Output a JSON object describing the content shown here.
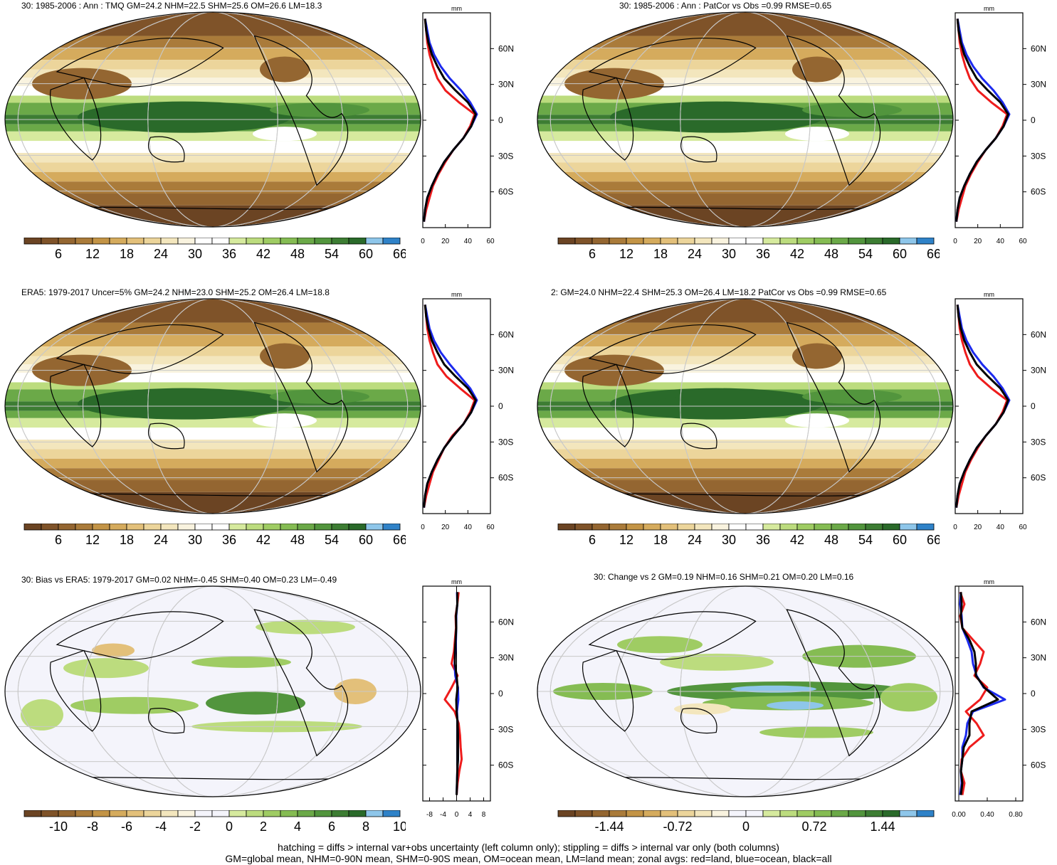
{
  "palettes": {
    "tmq": [
      "#6b4423",
      "#7f5329",
      "#946631",
      "#aa7b3a",
      "#c39446",
      "#d5ab5d",
      "#e3c07a",
      "#ecd59b",
      "#f3e6bd",
      "#f9f3df",
      "#ffffff",
      "#ffffff",
      "#d6ea9e",
      "#bcdc7e",
      "#9fcc63",
      "#85bc53",
      "#6ba948",
      "#52953d",
      "#3d7d33",
      "#2a6a2a",
      "#8ec6ea",
      "#2f82c8"
    ],
    "div": [
      "#6b4423",
      "#7f5329",
      "#946631",
      "#aa7b3a",
      "#c39446",
      "#d5ab5d",
      "#e3c07a",
      "#ecd59b",
      "#f3e6bd",
      "#f9f3df",
      "#f4f4fb",
      "#f4f4fb",
      "#d6ea9e",
      "#bcdc7e",
      "#9fcc63",
      "#85bc53",
      "#6ba948",
      "#52953d",
      "#3d7d33",
      "#2a6a2a",
      "#8ec6ea",
      "#2f82c8"
    ],
    "zonal_colors": {
      "land": "#ee1c1c",
      "ocean": "#1c2aee",
      "all": "#000000"
    }
  },
  "panels": [
    {
      "id": "p1",
      "title": "30: 1985-2006 : Ann : TMQ GM=24.2 NHM=22.5 SHM=25.6 OM=26.6 LM=18.3",
      "map_field": "tmq",
      "colorbar": {
        "palette": "tmq",
        "labels": [
          "6",
          "12",
          "18",
          "24",
          "30",
          "36",
          "42",
          "48",
          "54",
          "60",
          "66"
        ]
      },
      "zonal": {
        "unit": "mm",
        "xlim": [
          0,
          60
        ],
        "xticks": [
          "0",
          "20",
          "40",
          "60"
        ],
        "ylim": [
          -90,
          90
        ],
        "lat_labels": [
          {
            "lat": 60,
            "label": "60N"
          },
          {
            "lat": 30,
            "label": "30N"
          },
          {
            "lat": 0,
            "label": "0"
          },
          {
            "lat": -30,
            "label": "30S"
          },
          {
            "lat": -60,
            "label": "60S"
          }
        ],
        "lats": [
          -85,
          -75,
          -65,
          -55,
          -45,
          -35,
          -25,
          -15,
          -5,
          5,
          15,
          25,
          35,
          45,
          55,
          65,
          75,
          85
        ],
        "land": [
          1,
          3,
          6,
          9,
          14,
          20,
          27,
          36,
          42,
          46,
          32,
          20,
          13,
          9,
          6,
          4,
          3,
          2
        ],
        "ocean": [
          1,
          2,
          4,
          8,
          13,
          19,
          27,
          36,
          43,
          48,
          42,
          34,
          24,
          16,
          10,
          6,
          4,
          2
        ],
        "all": [
          1,
          2,
          4,
          8,
          13,
          19,
          27,
          36,
          43,
          47,
          40,
          29,
          19,
          13,
          8,
          5,
          3,
          2
        ]
      }
    },
    {
      "id": "p2",
      "title": "30: 1985-2006 : Ann : PatCor vs Obs =0.99 RMSE=0.65",
      "map_field": "tmq",
      "colorbar": {
        "palette": "tmq",
        "labels": [
          "6",
          "12",
          "18",
          "24",
          "30",
          "36",
          "42",
          "48",
          "54",
          "60",
          "66"
        ]
      },
      "zonal": {
        "unit": "mm",
        "xlim": [
          0,
          60
        ],
        "xticks": [
          "0",
          "20",
          "40",
          "60"
        ],
        "ylim": [
          -90,
          90
        ],
        "lat_labels": [
          {
            "lat": 60,
            "label": "60N"
          },
          {
            "lat": 30,
            "label": "30N"
          },
          {
            "lat": 0,
            "label": "0"
          },
          {
            "lat": -30,
            "label": "30S"
          },
          {
            "lat": -60,
            "label": "60S"
          }
        ],
        "lats": [
          -85,
          -75,
          -65,
          -55,
          -45,
          -35,
          -25,
          -15,
          -5,
          5,
          15,
          25,
          35,
          45,
          55,
          65,
          75,
          85
        ],
        "land": [
          1,
          3,
          6,
          9,
          14,
          20,
          27,
          36,
          42,
          46,
          32,
          20,
          13,
          9,
          6,
          4,
          3,
          2
        ],
        "ocean": [
          1,
          2,
          4,
          8,
          13,
          19,
          27,
          36,
          43,
          48,
          42,
          34,
          24,
          16,
          10,
          6,
          4,
          2
        ],
        "all": [
          1,
          2,
          4,
          8,
          13,
          19,
          27,
          36,
          43,
          47,
          40,
          29,
          19,
          13,
          8,
          5,
          3,
          2
        ]
      }
    },
    {
      "id": "p3",
      "title": "ERA5: 1979-2017 Uncer=5% GM=24.2 NHM=23.0 SHM=25.2 OM=26.4 LM=18.8",
      "map_field": "tmq",
      "colorbar": {
        "palette": "tmq",
        "labels": [
          "6",
          "12",
          "18",
          "24",
          "30",
          "36",
          "42",
          "48",
          "54",
          "60",
          "66"
        ]
      },
      "zonal": {
        "unit": "mm",
        "xlim": [
          0,
          60
        ],
        "xticks": [
          "0",
          "20",
          "40",
          "60"
        ],
        "ylim": [
          -90,
          90
        ],
        "lat_labels": [
          {
            "lat": 60,
            "label": "60N"
          },
          {
            "lat": 30,
            "label": "30N"
          },
          {
            "lat": 0,
            "label": "0"
          },
          {
            "lat": -30,
            "label": "30S"
          },
          {
            "lat": -60,
            "label": "60S"
          }
        ],
        "lats": [
          -85,
          -75,
          -65,
          -55,
          -45,
          -35,
          -25,
          -15,
          -5,
          5,
          15,
          25,
          35,
          45,
          55,
          65,
          75,
          85
        ],
        "land": [
          1,
          3,
          6,
          9,
          14,
          19,
          26,
          36,
          42,
          46,
          33,
          21,
          13,
          9,
          6,
          4,
          3,
          2
        ],
        "ocean": [
          1,
          2,
          4,
          8,
          13,
          19,
          27,
          36,
          43,
          48,
          42,
          33,
          24,
          16,
          10,
          6,
          4,
          2
        ],
        "all": [
          1,
          2,
          4,
          8,
          13,
          19,
          27,
          36,
          43,
          47,
          40,
          29,
          19,
          13,
          8,
          5,
          3,
          2
        ]
      }
    },
    {
      "id": "p4",
      "title": "2: GM=24.0 NHM=22.4 SHM=25.3 OM=26.4 LM=18.2 PatCor vs Obs =0.99 RMSE=0.65",
      "map_field": "tmq",
      "colorbar": {
        "palette": "tmq",
        "labels": [
          "6",
          "12",
          "18",
          "24",
          "30",
          "36",
          "42",
          "48",
          "54",
          "60",
          "66"
        ]
      },
      "zonal": {
        "unit": "mm",
        "xlim": [
          0,
          60
        ],
        "xticks": [
          "0",
          "20",
          "40",
          "60"
        ],
        "ylim": [
          -90,
          90
        ],
        "lat_labels": [
          {
            "lat": 60,
            "label": "60N"
          },
          {
            "lat": 30,
            "label": "30N"
          },
          {
            "lat": 0,
            "label": "0"
          },
          {
            "lat": -30,
            "label": "30S"
          },
          {
            "lat": -60,
            "label": "60S"
          }
        ],
        "lats": [
          -85,
          -75,
          -65,
          -55,
          -45,
          -35,
          -25,
          -15,
          -5,
          5,
          15,
          25,
          35,
          45,
          55,
          65,
          75,
          85
        ],
        "land": [
          1,
          3,
          6,
          9,
          14,
          20,
          27,
          36,
          42,
          46,
          32,
          20,
          13,
          9,
          6,
          4,
          3,
          2
        ],
        "ocean": [
          1,
          2,
          4,
          8,
          13,
          19,
          27,
          36,
          43,
          48,
          42,
          34,
          24,
          16,
          10,
          6,
          4,
          2
        ],
        "all": [
          1,
          2,
          4,
          8,
          13,
          19,
          27,
          36,
          43,
          47,
          40,
          29,
          19,
          13,
          8,
          5,
          3,
          2
        ]
      }
    },
    {
      "id": "p5",
      "title": "30: Bias vs ERA5: 1979-2017 GM=0.02 NHM=-0.45 SHM=0.40 OM=0.23 LM=-0.49",
      "map_field": "bias",
      "colorbar": {
        "palette": "div",
        "labels": [
          "-10",
          "-8",
          "-6",
          "-4",
          "-2",
          "0",
          "2",
          "4",
          "6",
          "8",
          "10"
        ]
      },
      "zonal": {
        "unit": "mm",
        "xlim": [
          -10,
          10
        ],
        "xticks": [
          "-8",
          "-4",
          "0",
          "4",
          "8"
        ],
        "ylim": [
          -90,
          90
        ],
        "lat_labels": [
          {
            "lat": 60,
            "label": "60N"
          },
          {
            "lat": 30,
            "label": "30N"
          },
          {
            "lat": 0,
            "label": "0"
          },
          {
            "lat": -30,
            "label": "30S"
          },
          {
            "lat": -60,
            "label": "60S"
          }
        ],
        "lats": [
          -85,
          -75,
          -65,
          -55,
          -45,
          -35,
          -25,
          -15,
          -5,
          5,
          15,
          25,
          35,
          45,
          55,
          65,
          75,
          85
        ],
        "land": [
          0,
          0.3,
          0.8,
          1.5,
          1.2,
          1.0,
          0.6,
          -0.6,
          -3.5,
          -1.5,
          0.3,
          -1.5,
          -0.8,
          -0.5,
          -0.2,
          -0.3,
          0.2,
          0.6
        ],
        "ocean": [
          0,
          0.1,
          0.2,
          0.4,
          0.4,
          0.4,
          0.3,
          0.1,
          0.5,
          0.4,
          -0.4,
          -0.6,
          -0.4,
          -0.2,
          -0.1,
          -0.1,
          0.2,
          0.1
        ],
        "all": [
          0,
          0.1,
          0.2,
          0.4,
          0.4,
          0.4,
          0.3,
          0.0,
          -0.1,
          0.3,
          0.0,
          -0.5,
          -0.5,
          -0.3,
          -0.1,
          -0.2,
          0.2,
          0.2
        ]
      }
    },
    {
      "id": "p6",
      "title": "30: Change vs 2 GM=0.19 NHM=0.16 SHM=0.21 OM=0.20 LM=0.16",
      "map_field": "change",
      "colorbar": {
        "palette": "div",
        "labels": [
          "-1.44",
          "-0.72",
          "0",
          "0.72",
          "1.44"
        ],
        "label_slots": [
          2,
          6,
          10,
          14,
          18
        ]
      },
      "zonal": {
        "unit": "mm",
        "xlim": [
          -0.05,
          0.9
        ],
        "xticks": [
          "0.00",
          "0.40",
          "0.80"
        ],
        "ylim": [
          -90,
          90
        ],
        "lat_labels": [
          {
            "lat": 60,
            "label": "60N"
          },
          {
            "lat": 30,
            "label": "30N"
          },
          {
            "lat": 0,
            "label": "0"
          },
          {
            "lat": -30,
            "label": "30S"
          },
          {
            "lat": -60,
            "label": "60S"
          }
        ],
        "lats": [
          -85,
          -75,
          -65,
          -55,
          -45,
          -35,
          -25,
          -15,
          -5,
          5,
          15,
          25,
          35,
          45,
          55,
          65,
          75,
          85
        ],
        "land": [
          0.05,
          0.08,
          0.03,
          0.04,
          0.15,
          0.35,
          0.25,
          0.1,
          0.3,
          0.4,
          0.22,
          0.3,
          0.35,
          0.2,
          0.05,
          0.02,
          0.08,
          0.02
        ],
        "ocean": [
          0.02,
          0.04,
          0.03,
          0.05,
          0.05,
          0.1,
          0.12,
          0.2,
          0.65,
          0.35,
          0.25,
          0.2,
          0.18,
          0.12,
          0.05,
          0.04,
          0.02,
          0.03
        ],
        "all": [
          0.03,
          0.05,
          0.03,
          0.05,
          0.07,
          0.15,
          0.15,
          0.18,
          0.55,
          0.36,
          0.24,
          0.24,
          0.22,
          0.15,
          0.05,
          0.03,
          0.04,
          0.03
        ]
      }
    }
  ],
  "footnote": {
    "line1": "hatching = diffs > internal var+obs uncertainty (left column only); stippling = diffs > internal var only (both columns)",
    "line2": "GM=global mean, NHM=0-90N mean, SHM=0-90S mean, OM=ocean mean, LM=land mean; zonal avgs: red=land, blue=ocean, black=all"
  }
}
